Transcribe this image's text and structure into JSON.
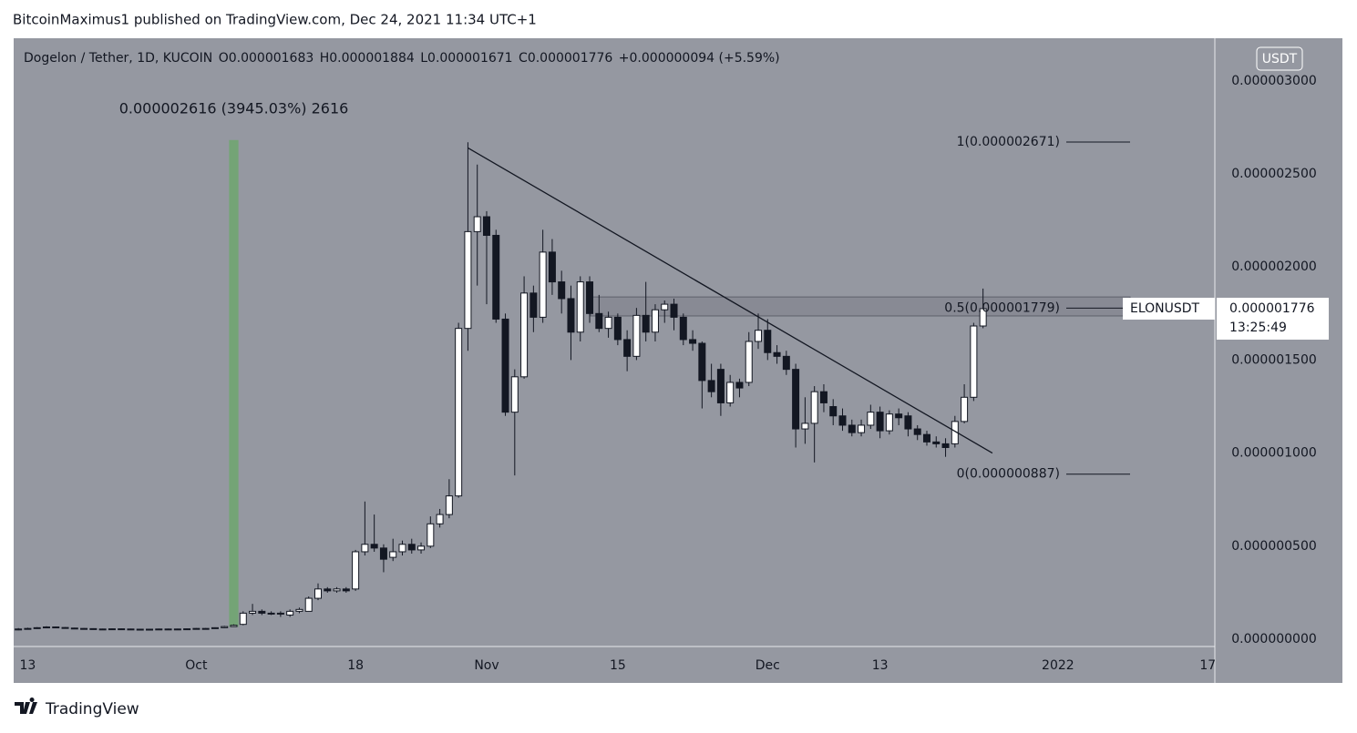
{
  "header": "BitcoinMaximus1 published on TradingView.com, Dec 24, 2021 11:34 UTC+1",
  "footer": "TradingView",
  "chart_data": {
    "type": "candlestick",
    "currency": "USDT",
    "legend": {
      "symbol": "Dogelon / Tether, 1D, KUCOIN",
      "ohlc": [
        {
          "key": "O",
          "value": "0.000001683"
        },
        {
          "key": "H",
          "value": "0.000001884"
        },
        {
          "key": "L",
          "value": "0.000001671"
        },
        {
          "key": "C",
          "value": "0.000001776"
        }
      ],
      "change": "+0.000000094 (+5.59%)"
    },
    "x": [
      "2021-09-12",
      "2021-09-13",
      "2021-09-14",
      "2021-09-15",
      "2021-09-16",
      "2021-09-17",
      "2021-09-18",
      "2021-09-19",
      "2021-09-20",
      "2021-09-21",
      "2021-09-22",
      "2021-09-23",
      "2021-09-24",
      "2021-09-25",
      "2021-09-26",
      "2021-09-27",
      "2021-09-28",
      "2021-09-29",
      "2021-09-30",
      "2021-10-01",
      "2021-10-02",
      "2021-10-03",
      "2021-10-04",
      "2021-10-05",
      "2021-10-06",
      "2021-10-07",
      "2021-10-08",
      "2021-10-09",
      "2021-10-10",
      "2021-10-11",
      "2021-10-12",
      "2021-10-13",
      "2021-10-14",
      "2021-10-15",
      "2021-10-16",
      "2021-10-17",
      "2021-10-18",
      "2021-10-19",
      "2021-10-20",
      "2021-10-21",
      "2021-10-22",
      "2021-10-23",
      "2021-10-24",
      "2021-10-25",
      "2021-10-26",
      "2021-10-27",
      "2021-10-28",
      "2021-10-29",
      "2021-10-30",
      "2021-10-31",
      "2021-11-01",
      "2021-11-02",
      "2021-11-03",
      "2021-11-04",
      "2021-11-05",
      "2021-11-06",
      "2021-11-07",
      "2021-11-08",
      "2021-11-09",
      "2021-11-10",
      "2021-11-11",
      "2021-11-12",
      "2021-11-13",
      "2021-11-14",
      "2021-11-15",
      "2021-11-16",
      "2021-11-17",
      "2021-11-18",
      "2021-11-19",
      "2021-11-20",
      "2021-11-21",
      "2021-11-22",
      "2021-11-23",
      "2021-11-24",
      "2021-11-25",
      "2021-11-26",
      "2021-11-27",
      "2021-11-28",
      "2021-11-29",
      "2021-11-30",
      "2021-12-01",
      "2021-12-02",
      "2021-12-03",
      "2021-12-04",
      "2021-12-05",
      "2021-12-06",
      "2021-12-07",
      "2021-12-08",
      "2021-12-09",
      "2021-12-10",
      "2021-12-11",
      "2021-12-12",
      "2021-12-13",
      "2021-12-14",
      "2021-12-15",
      "2021-12-16",
      "2021-12-17",
      "2021-12-18",
      "2021-12-19",
      "2021-12-20",
      "2021-12-21",
      "2021-12-22",
      "2021-12-23",
      "2021-12-24"
    ],
    "open": [
      5e-08,
      5.5e-08,
      5.8e-08,
      6.2e-08,
      6.6e-08,
      6.3e-08,
      6e-08,
      5.8e-08,
      5.7e-08,
      5.5e-08,
      5.4e-08,
      5.6e-08,
      5.5e-08,
      5.3e-08,
      5.4e-08,
      5.3e-08,
      5.5e-08,
      5.4e-08,
      5.5e-08,
      5.6e-08,
      5.8e-08,
      5.7e-08,
      6.2e-08,
      6.8e-08,
      8e-08,
      1.4e-07,
      1.5e-07,
      1.4e-07,
      1.35e-07,
      1.3e-07,
      1.5e-07,
      1.5e-07,
      2.2e-07,
      2.7e-07,
      2.6e-07,
      2.7e-07,
      2.7e-07,
      4.7e-07,
      5.1e-07,
      4.9e-07,
      4.4e-07,
      4.7e-07,
      5.1e-07,
      4.8e-07,
      5e-07,
      6.2e-07,
      6.7e-07,
      7.7e-07,
      1.67e-06,
      2.19e-06,
      2.27e-06,
      2.17e-06,
      1.72e-06,
      1.22e-06,
      1.41e-06,
      1.86e-06,
      1.73e-06,
      2.08e-06,
      1.92e-06,
      1.83e-06,
      1.65e-06,
      1.92e-06,
      1.75e-06,
      1.67e-06,
      1.73e-06,
      1.61e-06,
      1.52e-06,
      1.74e-06,
      1.65e-06,
      1.77e-06,
      1.8e-06,
      1.73e-06,
      1.61e-06,
      1.59e-06,
      1.39e-06,
      1.45e-06,
      1.27e-06,
      1.38e-06,
      1.38e-06,
      1.6e-06,
      1.66e-06,
      1.54e-06,
      1.52e-06,
      1.45e-06,
      1.13e-06,
      1.16e-06,
      1.33e-06,
      1.25e-06,
      1.2e-06,
      1.15e-06,
      1.11e-06,
      1.15e-06,
      1.22e-06,
      1.12e-06,
      1.21e-06,
      1.2e-06,
      1.13e-06,
      1.1e-06,
      1.06e-06,
      1.05e-06,
      1.05e-06,
      1.17e-06,
      1.3e-06,
      1.683e-06
    ],
    "high": [
      6e-08,
      6.2e-08,
      6.5e-08,
      7e-08,
      6.8e-08,
      6.5e-08,
      6.2e-08,
      6e-08,
      5.9e-08,
      5.7e-08,
      5.8e-08,
      5.8e-08,
      5.7e-08,
      5.6e-08,
      5.6e-08,
      5.7e-08,
      5.7e-08,
      5.7e-08,
      5.8e-08,
      6e-08,
      6e-08,
      6.4e-08,
      7.2e-08,
      8e-08,
      1.5e-07,
      1.9e-07,
      1.6e-07,
      1.5e-07,
      1.5e-07,
      1.6e-07,
      1.7e-07,
      2.3e-07,
      3e-07,
      2.8e-07,
      2.8e-07,
      2.8e-07,
      4.8e-07,
      7.4e-07,
      6.7e-07,
      5.1e-07,
      5.4e-07,
      5.3e-07,
      5.4e-07,
      5.2e-07,
      6.6e-07,
      7e-07,
      8.6e-07,
      1.7e-06,
      2.67e-06,
      2.55e-06,
      2.3e-06,
      2.2e-06,
      1.75e-06,
      1.45e-06,
      1.95e-06,
      1.9e-06,
      2.2e-06,
      2.15e-06,
      1.98e-06,
      1.9e-06,
      1.95e-06,
      1.95e-06,
      1.85e-06,
      1.76e-06,
      1.75e-06,
      1.66e-06,
      1.78e-06,
      1.92e-06,
      1.8e-06,
      1.82e-06,
      1.83e-06,
      1.75e-06,
      1.66e-06,
      1.6e-06,
      1.48e-06,
      1.48e-06,
      1.42e-06,
      1.4e-06,
      1.65e-06,
      1.75e-06,
      1.72e-06,
      1.58e-06,
      1.55e-06,
      1.48e-06,
      1.3e-06,
      1.36e-06,
      1.37e-06,
      1.29e-06,
      1.24e-06,
      1.18e-06,
      1.18e-06,
      1.26e-06,
      1.25e-06,
      1.23e-06,
      1.24e-06,
      1.22e-06,
      1.15e-06,
      1.12e-06,
      1.09e-06,
      1.08e-06,
      1.2e-06,
      1.37e-06,
      1.7e-06,
      1.884e-06
    ],
    "low": [
      4.8e-08,
      5.3e-08,
      5.6e-08,
      6e-08,
      6e-08,
      5.8e-08,
      5.6e-08,
      5.5e-08,
      5.2e-08,
      5.2e-08,
      5.2e-08,
      5.3e-08,
      5.1e-08,
      5.2e-08,
      5.1e-08,
      5.2e-08,
      5.2e-08,
      5.3e-08,
      5.3e-08,
      5.5e-08,
      5.5e-08,
      5.6e-08,
      6e-08,
      6.6e-08,
      7.5e-08,
      1.3e-07,
      1.3e-07,
      1.3e-07,
      1.2e-07,
      1.2e-07,
      1.4e-07,
      1.5e-07,
      2.1e-07,
      2.5e-07,
      2.5e-07,
      2.5e-07,
      2.6e-07,
      4.5e-07,
      4.7e-07,
      3.6e-07,
      4.2e-07,
      4.5e-07,
      4.6e-07,
      4.6e-07,
      4.9e-07,
      6e-07,
      6.5e-07,
      7.6e-07,
      1.55e-06,
      1.9e-06,
      1.8e-06,
      1.7e-06,
      1.2e-06,
      8.8e-07,
      1.4e-06,
      1.65e-06,
      1.7e-06,
      1.85e-06,
      1.75e-06,
      1.5e-06,
      1.6e-06,
      1.7e-06,
      1.65e-06,
      1.62e-06,
      1.58e-06,
      1.44e-06,
      1.5e-06,
      1.6e-06,
      1.6e-06,
      1.7e-06,
      1.66e-06,
      1.58e-06,
      1.55e-06,
      1.24e-06,
      1.3e-06,
      1.2e-06,
      1.25e-06,
      1.3e-06,
      1.36e-06,
      1.56e-06,
      1.5e-06,
      1.48e-06,
      1.42e-06,
      1.03e-06,
      1.05e-06,
      9.5e-07,
      1.22e-06,
      1.15e-06,
      1.12e-06,
      1.09e-06,
      1.09e-06,
      1.13e-06,
      1.08e-06,
      1.1e-06,
      1.15e-06,
      1.09e-06,
      1.07e-06,
      1.04e-06,
      1.03e-06,
      9.8e-07,
      1.03e-06,
      1.16e-06,
      1.28e-06,
      1.671e-06
    ],
    "close": [
      5.5e-08,
      5.8e-08,
      6.2e-08,
      6.6e-08,
      6.3e-08,
      6e-08,
      5.8e-08,
      5.7e-08,
      5.5e-08,
      5.4e-08,
      5.6e-08,
      5.5e-08,
      5.3e-08,
      5.4e-08,
      5.3e-08,
      5.5e-08,
      5.4e-08,
      5.5e-08,
      5.6e-08,
      5.8e-08,
      5.7e-08,
      6.2e-08,
      6.8e-08,
      7.5e-08,
      1.4e-07,
      1.5e-07,
      1.4e-07,
      1.35e-07,
      1.4e-07,
      1.5e-07,
      1.6e-07,
      2.2e-07,
      2.7e-07,
      2.6e-07,
      2.7e-07,
      2.6e-07,
      4.7e-07,
      5.1e-07,
      4.9e-07,
      4.3e-07,
      4.7e-07,
      5.1e-07,
      4.8e-07,
      5e-07,
      6.2e-07,
      6.7e-07,
      7.7e-07,
      1.67e-06,
      2.19e-06,
      2.27e-06,
      2.17e-06,
      1.72e-06,
      1.22e-06,
      1.41e-06,
      1.86e-06,
      1.73e-06,
      2.08e-06,
      1.92e-06,
      1.83e-06,
      1.65e-06,
      1.92e-06,
      1.75e-06,
      1.67e-06,
      1.73e-06,
      1.61e-06,
      1.52e-06,
      1.74e-06,
      1.65e-06,
      1.77e-06,
      1.8e-06,
      1.73e-06,
      1.61e-06,
      1.59e-06,
      1.39e-06,
      1.33e-06,
      1.27e-06,
      1.38e-06,
      1.35e-06,
      1.6e-06,
      1.66e-06,
      1.54e-06,
      1.52e-06,
      1.45e-06,
      1.13e-06,
      1.16e-06,
      1.33e-06,
      1.27e-06,
      1.2e-06,
      1.15e-06,
      1.11e-06,
      1.15e-06,
      1.22e-06,
      1.12e-06,
      1.21e-06,
      1.19e-06,
      1.13e-06,
      1.1e-06,
      1.06e-06,
      1.05e-06,
      1.03e-06,
      1.17e-06,
      1.3e-06,
      1.683e-06,
      1.776e-06
    ],
    "up_color": "#ffffff",
    "down_color": "#131722",
    "xlim": [
      "2021-09-11T12:00",
      "2022-01-17T18:00"
    ],
    "xticks": [
      {
        "value": "2021-09-13",
        "label": "13"
      },
      {
        "value": "2021-10-01",
        "label": "Oct"
      },
      {
        "value": "2021-10-18",
        "label": "18"
      },
      {
        "value": "2021-11-01",
        "label": "Nov"
      },
      {
        "value": "2021-11-15",
        "label": "15"
      },
      {
        "value": "2021-12-01",
        "label": "Dec"
      },
      {
        "value": "2021-12-13",
        "label": "13"
      },
      {
        "value": "2022-01-01",
        "label": "2022"
      },
      {
        "value": "2022-01-17",
        "label": "17"
      }
    ],
    "ylim": [
      -3.9e-08,
      3.229e-06
    ],
    "yticks": [
      {
        "value": 0,
        "label": "0.000000000"
      },
      {
        "value": 5e-07,
        "label": "0.000000500"
      },
      {
        "value": 1e-06,
        "label": "0.000001000"
      },
      {
        "value": 1.5e-06,
        "label": "0.000001500"
      },
      {
        "value": 2e-06,
        "label": "0.000002000"
      },
      {
        "value": 2.5e-06,
        "label": "0.000002500"
      },
      {
        "value": 3e-06,
        "label": "0.000003000"
      }
    ],
    "trendline": {
      "x": [
        "2021-10-30",
        "2021-12-25"
      ],
      "y": [
        2.64e-06,
        1e-06
      ]
    },
    "zone": {
      "low": 1.737e-06,
      "high": 1.839e-06
    },
    "measure": {
      "x": "2021-10-05",
      "low": 6.6e-08,
      "high": 2.682e-06,
      "label": "0.000002616 (3945.03%) 2616",
      "color": "#6ea66f"
    },
    "fib_levels": [
      {
        "value": 2.671e-06,
        "label": "1(0.000002671)"
      },
      {
        "value": 1.779e-06,
        "label": "0.5(0.000001779)"
      },
      {
        "value": 8.87e-07,
        "label": "0(0.000000887)"
      }
    ],
    "price_tag": {
      "symbol": "ELONUSDT",
      "value": 1.776e-06,
      "label": "0.000001776",
      "countdown": "13:25:49"
    }
  }
}
